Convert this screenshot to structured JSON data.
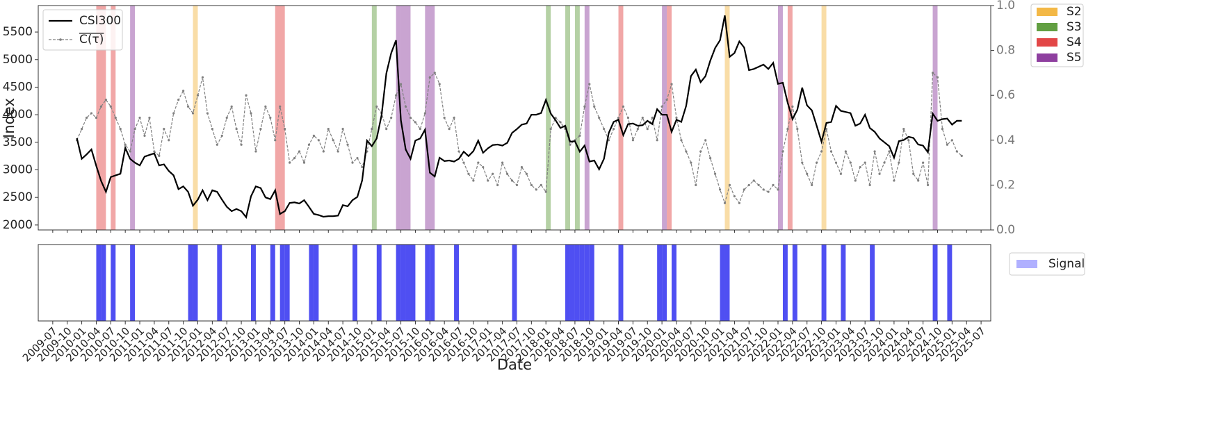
{
  "chart_data": {
    "type": "line",
    "ylabel": "Index",
    "xlabel": "Date",
    "x": [
      "2009-12",
      "2010-01",
      "2010-02",
      "2010-03",
      "2010-04",
      "2010-05",
      "2010-06",
      "2010-07",
      "2010-08",
      "2010-09",
      "2010-10",
      "2010-11",
      "2010-12",
      "2011-01",
      "2011-02",
      "2011-03",
      "2011-04",
      "2011-05",
      "2011-06",
      "2011-07",
      "2011-08",
      "2011-09",
      "2011-10",
      "2011-11",
      "2011-12",
      "2012-01",
      "2012-02",
      "2012-03",
      "2012-04",
      "2012-05",
      "2012-06",
      "2012-07",
      "2012-08",
      "2012-09",
      "2012-10",
      "2012-11",
      "2012-12",
      "2013-01",
      "2013-02",
      "2013-03",
      "2013-04",
      "2013-05",
      "2013-06",
      "2013-07",
      "2013-08",
      "2013-09",
      "2013-10",
      "2013-11",
      "2013-12",
      "2014-01",
      "2014-02",
      "2014-03",
      "2014-04",
      "2014-05",
      "2014-06",
      "2014-07",
      "2014-08",
      "2014-09",
      "2014-10",
      "2014-11",
      "2014-12",
      "2015-01",
      "2015-02",
      "2015-03",
      "2015-04",
      "2015-05",
      "2015-06",
      "2015-07",
      "2015-08",
      "2015-09",
      "2015-10",
      "2015-11",
      "2015-12",
      "2016-01",
      "2016-02",
      "2016-03",
      "2016-04",
      "2016-05",
      "2016-06",
      "2016-07",
      "2016-08",
      "2016-09",
      "2016-10",
      "2016-11",
      "2016-12",
      "2017-01",
      "2017-02",
      "2017-03",
      "2017-04",
      "2017-05",
      "2017-06",
      "2017-07",
      "2017-08",
      "2017-09",
      "2017-10",
      "2017-11",
      "2017-12",
      "2018-01",
      "2018-02",
      "2018-03",
      "2018-04",
      "2018-05",
      "2018-06",
      "2018-07",
      "2018-08",
      "2018-09",
      "2018-10",
      "2018-11",
      "2018-12",
      "2019-01",
      "2019-02",
      "2019-03",
      "2019-04",
      "2019-05",
      "2019-06",
      "2019-07",
      "2019-08",
      "2019-09",
      "2019-10",
      "2019-11",
      "2019-12",
      "2020-01",
      "2020-02",
      "2020-03",
      "2020-04",
      "2020-05",
      "2020-06",
      "2020-07",
      "2020-08",
      "2020-09",
      "2020-10",
      "2020-11",
      "2020-12",
      "2021-01",
      "2021-02",
      "2021-03",
      "2021-04",
      "2021-05",
      "2021-06",
      "2021-07",
      "2021-08",
      "2021-09",
      "2021-10",
      "2021-11",
      "2021-12",
      "2022-01",
      "2022-02",
      "2022-03",
      "2022-04",
      "2022-05",
      "2022-06",
      "2022-07",
      "2022-08",
      "2022-09",
      "2022-10",
      "2022-11",
      "2022-12",
      "2023-01",
      "2023-02",
      "2023-03",
      "2023-04",
      "2023-05",
      "2023-06",
      "2023-07",
      "2023-08",
      "2023-09",
      "2023-10",
      "2023-11",
      "2023-12",
      "2024-01",
      "2024-02",
      "2024-03",
      "2024-04",
      "2024-05",
      "2024-06",
      "2024-07",
      "2024-08",
      "2024-09",
      "2024-10",
      "2024-11",
      "2024-12",
      "2025-01",
      "2025-02",
      "2025-03"
    ],
    "series": [
      {
        "name": "CSI300",
        "color": "#000000",
        "axis": "y",
        "values": [
          3575,
          3200,
          3280,
          3370,
          3070,
          2800,
          2600,
          2870,
          2900,
          2930,
          3400,
          3200,
          3130,
          3080,
          3240,
          3270,
          3300,
          3080,
          3100,
          2980,
          2900,
          2650,
          2700,
          2600,
          2350,
          2460,
          2630,
          2450,
          2630,
          2600,
          2460,
          2330,
          2250,
          2290,
          2250,
          2140,
          2520,
          2700,
          2670,
          2500,
          2470,
          2630,
          2200,
          2250,
          2400,
          2410,
          2390,
          2450,
          2330,
          2200,
          2180,
          2150,
          2160,
          2160,
          2170,
          2360,
          2340,
          2450,
          2510,
          2810,
          3530,
          3430,
          3570,
          3990,
          4750,
          5120,
          5350,
          3900,
          3370,
          3200,
          3530,
          3570,
          3730,
          2950,
          2880,
          3220,
          3160,
          3170,
          3150,
          3200,
          3330,
          3250,
          3340,
          3530,
          3310,
          3390,
          3450,
          3460,
          3440,
          3490,
          3670,
          3740,
          3820,
          3840,
          4000,
          4000,
          4030,
          4270,
          4020,
          3900,
          3760,
          3800,
          3510,
          3520,
          3330,
          3440,
          3150,
          3170,
          3010,
          3200,
          3670,
          3870,
          3910,
          3630,
          3830,
          3840,
          3800,
          3810,
          3890,
          3830,
          4100,
          4000,
          4000,
          3690,
          3910,
          3870,
          4160,
          4700,
          4820,
          4590,
          4700,
          4980,
          5210,
          5350,
          5800,
          5050,
          5120,
          5330,
          5220,
          4810,
          4830,
          4870,
          4910,
          4830,
          4940,
          4560,
          4580,
          4220,
          3920,
          4090,
          4490,
          4170,
          4080,
          3800,
          3510,
          3850,
          3870,
          4160,
          4070,
          4050,
          4030,
          3800,
          3840,
          4000,
          3760,
          3690,
          3570,
          3500,
          3430,
          3220,
          3520,
          3540,
          3600,
          3580,
          3460,
          3440,
          3320,
          4020,
          3890,
          3920,
          3930,
          3820,
          3890,
          3890
        ]
      },
      {
        "name": "C(τ)",
        "color": "#808080",
        "axis": "y2",
        "linestyle": "dashed",
        "marker": true,
        "values": [
          0.4,
          0.45,
          0.5,
          0.52,
          0.5,
          0.55,
          0.58,
          0.55,
          0.5,
          0.45,
          0.38,
          0.35,
          0.45,
          0.5,
          0.42,
          0.5,
          0.35,
          0.33,
          0.45,
          0.4,
          0.52,
          0.58,
          0.62,
          0.55,
          0.52,
          0.6,
          0.68,
          0.52,
          0.45,
          0.38,
          0.42,
          0.5,
          0.55,
          0.45,
          0.38,
          0.6,
          0.52,
          0.35,
          0.45,
          0.55,
          0.5,
          0.4,
          0.55,
          0.45,
          0.3,
          0.32,
          0.35,
          0.3,
          0.38,
          0.42,
          0.4,
          0.35,
          0.45,
          0.4,
          0.35,
          0.45,
          0.38,
          0.3,
          0.32,
          0.28,
          0.35,
          0.45,
          0.55,
          0.52,
          0.45,
          0.5,
          0.6,
          0.65,
          0.55,
          0.5,
          0.48,
          0.45,
          0.52,
          0.68,
          0.7,
          0.65,
          0.5,
          0.45,
          0.5,
          0.35,
          0.3,
          0.25,
          0.22,
          0.3,
          0.28,
          0.22,
          0.25,
          0.2,
          0.3,
          0.25,
          0.22,
          0.2,
          0.28,
          0.25,
          0.2,
          0.18,
          0.2,
          0.17,
          0.45,
          0.5,
          0.48,
          0.45,
          0.38,
          0.4,
          0.42,
          0.55,
          0.65,
          0.55,
          0.5,
          0.45,
          0.4,
          0.45,
          0.5,
          0.55,
          0.5,
          0.4,
          0.45,
          0.5,
          0.45,
          0.5,
          0.4,
          0.55,
          0.58,
          0.65,
          0.5,
          0.4,
          0.35,
          0.3,
          0.2,
          0.35,
          0.4,
          0.32,
          0.25,
          0.18,
          0.12,
          0.2,
          0.15,
          0.12,
          0.18,
          0.2,
          0.22,
          0.2,
          0.18,
          0.17,
          0.2,
          0.18,
          0.35,
          0.45,
          0.55,
          0.45,
          0.3,
          0.25,
          0.2,
          0.3,
          0.35,
          0.45,
          0.35,
          0.3,
          0.25,
          0.35,
          0.3,
          0.22,
          0.28,
          0.3,
          0.2,
          0.35,
          0.25,
          0.3,
          0.35,
          0.22,
          0.3,
          0.45,
          0.4,
          0.25,
          0.22,
          0.3,
          0.2,
          0.7,
          0.68,
          0.45,
          0.38,
          0.4,
          0.35,
          0.33
        ]
      }
    ],
    "xlim": [
      "2009-04",
      "2025-09"
    ],
    "xticks": [
      "2009-07",
      "2009-10",
      "2010-01",
      "2010-04",
      "2010-07",
      "2010-10",
      "2011-01",
      "2011-04",
      "2011-07",
      "2011-10",
      "2012-01",
      "2012-04",
      "2012-07",
      "2012-10",
      "2013-01",
      "2013-04",
      "2013-07",
      "2013-10",
      "2014-01",
      "2014-04",
      "2014-07",
      "2014-10",
      "2015-01",
      "2015-04",
      "2015-07",
      "2015-10",
      "2016-01",
      "2016-04",
      "2016-07",
      "2016-10",
      "2017-01",
      "2017-04",
      "2017-07",
      "2017-10",
      "2018-01",
      "2018-04",
      "2018-07",
      "2018-10",
      "2019-01",
      "2019-04",
      "2019-07",
      "2019-10",
      "2020-01",
      "2020-04",
      "2020-07",
      "2020-10",
      "2021-01",
      "2021-04",
      "2021-07",
      "2021-10",
      "2022-01",
      "2022-04",
      "2022-07",
      "2022-10",
      "2023-01",
      "2023-04",
      "2023-07",
      "2023-10",
      "2024-01",
      "2024-04",
      "2024-07",
      "2024-10",
      "2025-01",
      "2025-04",
      "2025-07"
    ],
    "ylim": [
      1910,
      5980
    ],
    "yticks": [
      2000,
      2500,
      3000,
      3500,
      4000,
      4500,
      5000,
      5500
    ],
    "y2lim": [
      0,
      1
    ],
    "y2ticks": [
      {
        "value": 0,
        "label": "0.0"
      },
      0.2,
      0.4,
      0.6,
      0.8,
      {
        "value": 1,
        "label": "1.0"
      }
    ],
    "regimes": [
      {
        "name": "S2",
        "color": "#f2b43c"
      },
      {
        "name": "S3",
        "color": "#5a9a38"
      },
      {
        "name": "S4",
        "color": "#e03c3c"
      },
      {
        "name": "S5",
        "color": "#88359a"
      }
    ],
    "spans": [
      {
        "start": "2010-04",
        "end": "2010-06",
        "regime": 2
      },
      {
        "start": "2010-07",
        "end": "2010-08",
        "regime": 2
      },
      {
        "start": "2010-11",
        "end": "2010-12",
        "regime": 3
      },
      {
        "start": "2011-12",
        "end": "2012-01",
        "regime": 0
      },
      {
        "start": "2013-05",
        "end": "2013-07",
        "regime": 2
      },
      {
        "start": "2015-01",
        "end": "2015-02",
        "regime": 1
      },
      {
        "start": "2015-06",
        "end": "2015-07",
        "regime": 3
      },
      {
        "start": "2015-07",
        "end": "2015-09",
        "regime": 3
      },
      {
        "start": "2015-12",
        "end": "2016-02",
        "regime": 3
      },
      {
        "start": "2018-01",
        "end": "2018-02",
        "regime": 1
      },
      {
        "start": "2018-05",
        "end": "2018-06",
        "regime": 1
      },
      {
        "start": "2018-07",
        "end": "2018-08",
        "regime": 1
      },
      {
        "start": "2018-09",
        "end": "2018-10",
        "regime": 3
      },
      {
        "start": "2019-04",
        "end": "2019-05",
        "regime": 2
      },
      {
        "start": "2020-01",
        "end": "2020-02",
        "regime": 3
      },
      {
        "start": "2020-02",
        "end": "2020-03",
        "regime": 2
      },
      {
        "start": "2021-02",
        "end": "2021-03",
        "regime": 0
      },
      {
        "start": "2022-01",
        "end": "2022-02",
        "regime": 3
      },
      {
        "start": "2022-03",
        "end": "2022-04",
        "regime": 2
      },
      {
        "start": "2022-10",
        "end": "2022-11",
        "regime": 0
      },
      {
        "start": "2024-09",
        "end": "2024-10",
        "regime": 3
      }
    ],
    "signal": {
      "name": "Signal",
      "color": "#3030f0",
      "legend_color": "#b0b0ff",
      "x": [
        "2010-04",
        "2010-05",
        "2010-07",
        "2010-11",
        "2011-11",
        "2011-12",
        "2012-05",
        "2012-12",
        "2013-04",
        "2013-06",
        "2013-07",
        "2013-12",
        "2014-01",
        "2014-09",
        "2015-02",
        "2015-06",
        "2015-07",
        "2015-08",
        "2015-09",
        "2015-12",
        "2016-01",
        "2016-06",
        "2017-06",
        "2018-05",
        "2018-06",
        "2018-07",
        "2018-08",
        "2018-09",
        "2018-10",
        "2019-04",
        "2019-12",
        "2020-01",
        "2020-03",
        "2021-01",
        "2021-02",
        "2022-02",
        "2022-04",
        "2022-10",
        "2023-02",
        "2023-08",
        "2024-09",
        "2024-12"
      ]
    }
  }
}
